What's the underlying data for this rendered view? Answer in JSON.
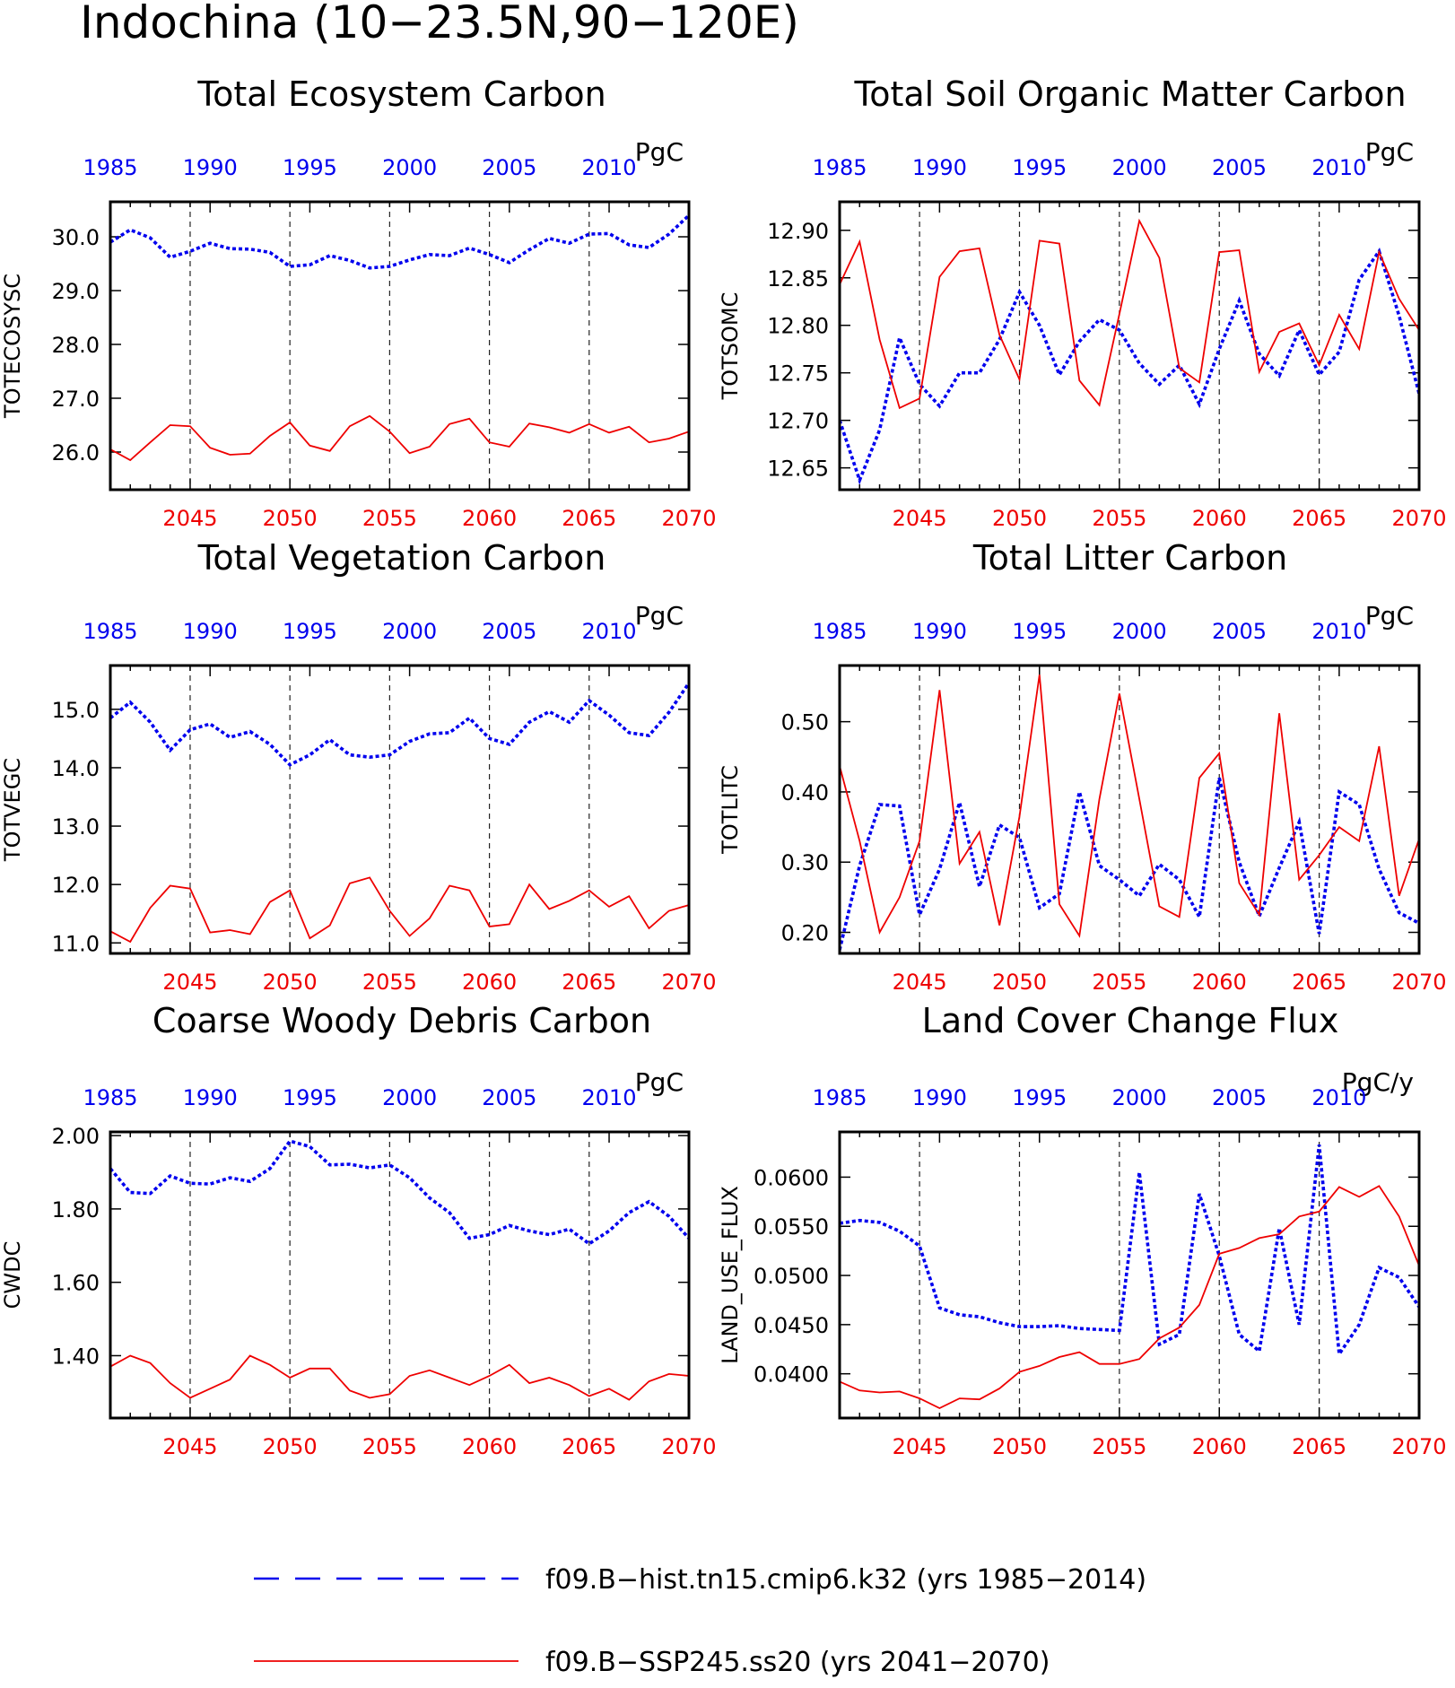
{
  "figure": {
    "title": "Indochina (10−23.5N,90−120E)",
    "colors": {
      "hist": "#0000ee",
      "ssp": "#ee0000",
      "axis": "#000000"
    }
  },
  "legend": {
    "entries": [
      {
        "name": "f09.B−hist.tn15.cmip6.k32 (yrs 1985−2014)",
        "color": "#0000ee",
        "style": "dashed"
      },
      {
        "name": "f09.B−SSP245.ss20 (yrs 2041−2070)",
        "color": "#ee0000",
        "style": "solid"
      }
    ]
  },
  "chart_data": [
    {
      "type": "line",
      "title": "Total Ecosystem Carbon",
      "ylabel": "TOTECOSYSC",
      "units": "PgC",
      "ylim": [
        25.3,
        30.65
      ],
      "yticks": [
        26.0,
        27.0,
        28.0,
        29.0,
        30.0
      ],
      "ytick_labels": [
        "26.0",
        "27.0",
        "28.0",
        "29.0",
        "30.0"
      ],
      "x_top": [
        1985,
        1986,
        1987,
        1988,
        1989,
        1990,
        1991,
        1992,
        1993,
        1994,
        1995,
        1996,
        1997,
        1998,
        1999,
        2000,
        2001,
        2002,
        2003,
        2004,
        2005,
        2006,
        2007,
        2008,
        2009,
        2010,
        2011,
        2012,
        2013,
        2014
      ],
      "x_bottom": [
        2041,
        2042,
        2043,
        2044,
        2045,
        2046,
        2047,
        2048,
        2049,
        2050,
        2051,
        2052,
        2053,
        2054,
        2055,
        2056,
        2057,
        2058,
        2059,
        2060,
        2061,
        2062,
        2063,
        2064,
        2065,
        2066,
        2067,
        2068,
        2069,
        2070
      ],
      "top_ticks": [
        1985,
        1990,
        1995,
        2000,
        2005,
        2010
      ],
      "bottom_ticks": [
        2045,
        2050,
        2055,
        2060,
        2065,
        2070
      ],
      "series": [
        {
          "name": "hist",
          "values": [
            29.9,
            30.13,
            29.98,
            29.62,
            29.73,
            29.88,
            29.78,
            29.77,
            29.71,
            29.45,
            29.48,
            29.65,
            29.56,
            29.42,
            29.45,
            29.57,
            29.67,
            29.65,
            29.79,
            29.67,
            29.52,
            29.76,
            29.97,
            29.88,
            30.05,
            30.06,
            29.85,
            29.8,
            30.05,
            30.4
          ]
        },
        {
          "name": "ssp",
          "values": [
            26.05,
            25.85,
            26.18,
            26.5,
            26.48,
            26.08,
            25.95,
            25.97,
            26.3,
            26.55,
            26.12,
            26.02,
            26.48,
            26.67,
            26.38,
            25.98,
            26.1,
            26.52,
            26.62,
            26.18,
            26.1,
            26.53,
            26.46,
            26.36,
            26.52,
            26.36,
            26.47,
            26.18,
            26.25,
            26.38
          ]
        }
      ]
    },
    {
      "type": "line",
      "title": "Total Soil Organic Matter Carbon",
      "ylabel": "TOTSOMC",
      "units": "PgC",
      "ylim": [
        12.627,
        12.93
      ],
      "yticks": [
        12.65,
        12.7,
        12.75,
        12.8,
        12.85,
        12.9
      ],
      "ytick_labels": [
        "12.65",
        "12.70",
        "12.75",
        "12.80",
        "12.85",
        "12.90"
      ],
      "x_top": [
        1985,
        1986,
        1987,
        1988,
        1989,
        1990,
        1991,
        1992,
        1993,
        1994,
        1995,
        1996,
        1997,
        1998,
        1999,
        2000,
        2001,
        2002,
        2003,
        2004,
        2005,
        2006,
        2007,
        2008,
        2009,
        2010,
        2011,
        2012,
        2013,
        2014
      ],
      "x_bottom": [
        2041,
        2042,
        2043,
        2044,
        2045,
        2046,
        2047,
        2048,
        2049,
        2050,
        2051,
        2052,
        2053,
        2054,
        2055,
        2056,
        2057,
        2058,
        2059,
        2060,
        2061,
        2062,
        2063,
        2064,
        2065,
        2066,
        2067,
        2068,
        2069,
        2070
      ],
      "top_ticks": [
        1985,
        1990,
        1995,
        2000,
        2005,
        2010
      ],
      "bottom_ticks": [
        2045,
        2050,
        2055,
        2060,
        2065,
        2070
      ],
      "series": [
        {
          "name": "hist",
          "values": [
            12.7,
            12.637,
            12.69,
            12.787,
            12.738,
            12.715,
            12.75,
            12.75,
            12.785,
            12.835,
            12.8,
            12.748,
            12.783,
            12.806,
            12.795,
            12.76,
            12.738,
            12.758,
            12.717,
            12.775,
            12.826,
            12.77,
            12.747,
            12.795,
            12.748,
            12.772,
            12.848,
            12.878,
            12.81,
            12.728
          ]
        },
        {
          "name": "ssp",
          "values": [
            12.843,
            12.888,
            12.785,
            12.713,
            12.723,
            12.851,
            12.878,
            12.881,
            12.79,
            12.743,
            12.889,
            12.886,
            12.742,
            12.716,
            12.812,
            12.91,
            12.871,
            12.755,
            12.74,
            12.877,
            12.879,
            12.751,
            12.793,
            12.802,
            12.758,
            12.811,
            12.775,
            12.877,
            12.828,
            12.795
          ]
        }
      ]
    },
    {
      "type": "line",
      "title": "Total Vegetation Carbon",
      "ylabel": "TOTVEGC",
      "units": "PgC",
      "ylim": [
        10.82,
        15.75
      ],
      "yticks": [
        11.0,
        12.0,
        13.0,
        14.0,
        15.0
      ],
      "ytick_labels": [
        "11.0",
        "12.0",
        "13.0",
        "14.0",
        "15.0"
      ],
      "x_top": [
        1985,
        1986,
        1987,
        1988,
        1989,
        1990,
        1991,
        1992,
        1993,
        1994,
        1995,
        1996,
        1997,
        1998,
        1999,
        2000,
        2001,
        2002,
        2003,
        2004,
        2005,
        2006,
        2007,
        2008,
        2009,
        2010,
        2011,
        2012,
        2013,
        2014
      ],
      "x_bottom": [
        2041,
        2042,
        2043,
        2044,
        2045,
        2046,
        2047,
        2048,
        2049,
        2050,
        2051,
        2052,
        2053,
        2054,
        2055,
        2056,
        2057,
        2058,
        2059,
        2060,
        2061,
        2062,
        2063,
        2064,
        2065,
        2066,
        2067,
        2068,
        2069,
        2070
      ],
      "top_ticks": [
        1985,
        1990,
        1995,
        2000,
        2005,
        2010
      ],
      "bottom_ticks": [
        2045,
        2050,
        2055,
        2060,
        2065,
        2070
      ],
      "series": [
        {
          "name": "hist",
          "values": [
            14.85,
            15.12,
            14.78,
            14.3,
            14.65,
            14.75,
            14.52,
            14.62,
            14.4,
            14.05,
            14.22,
            14.48,
            14.22,
            14.18,
            14.22,
            14.45,
            14.58,
            14.6,
            14.85,
            14.5,
            14.4,
            14.78,
            14.96,
            14.78,
            15.15,
            14.9,
            14.6,
            14.55,
            14.95,
            15.45
          ]
        },
        {
          "name": "ssp",
          "values": [
            11.2,
            11.02,
            11.6,
            11.98,
            11.93,
            11.18,
            11.22,
            11.15,
            11.7,
            11.9,
            11.08,
            11.3,
            12.02,
            12.12,
            11.55,
            11.12,
            11.42,
            11.98,
            11.9,
            11.28,
            11.32,
            12.0,
            11.58,
            11.72,
            11.9,
            11.62,
            11.8,
            11.25,
            11.55,
            11.65
          ]
        }
      ]
    },
    {
      "type": "line",
      "title": "Total Litter Carbon",
      "ylabel": "TOTLITC",
      "units": "PgC",
      "ylim": [
        0.17,
        0.58
      ],
      "yticks": [
        0.2,
        0.3,
        0.4,
        0.5
      ],
      "ytick_labels": [
        "0.20",
        "0.30",
        "0.40",
        "0.50"
      ],
      "x_top": [
        1985,
        1986,
        1987,
        1988,
        1989,
        1990,
        1991,
        1992,
        1993,
        1994,
        1995,
        1996,
        1997,
        1998,
        1999,
        2000,
        2001,
        2002,
        2003,
        2004,
        2005,
        2006,
        2007,
        2008,
        2009,
        2010,
        2011,
        2012,
        2013,
        2014
      ],
      "x_bottom": [
        2041,
        2042,
        2043,
        2044,
        2045,
        2046,
        2047,
        2048,
        2049,
        2050,
        2051,
        2052,
        2053,
        2054,
        2055,
        2056,
        2057,
        2058,
        2059,
        2060,
        2061,
        2062,
        2063,
        2064,
        2065,
        2066,
        2067,
        2068,
        2069,
        2070
      ],
      "top_ticks": [
        1985,
        1990,
        1995,
        2000,
        2005,
        2010
      ],
      "bottom_ticks": [
        2045,
        2050,
        2055,
        2060,
        2065,
        2070
      ],
      "series": [
        {
          "name": "hist",
          "values": [
            0.175,
            0.295,
            0.382,
            0.38,
            0.225,
            0.29,
            0.385,
            0.265,
            0.353,
            0.335,
            0.235,
            0.255,
            0.4,
            0.295,
            0.275,
            0.252,
            0.297,
            0.275,
            0.222,
            0.42,
            0.3,
            0.223,
            0.292,
            0.357,
            0.198,
            0.4,
            0.382,
            0.29,
            0.228,
            0.213
          ]
        },
        {
          "name": "ssp",
          "values": [
            0.437,
            0.33,
            0.2,
            0.25,
            0.33,
            0.545,
            0.298,
            0.343,
            0.21,
            0.365,
            0.567,
            0.24,
            0.195,
            0.39,
            0.54,
            0.39,
            0.237,
            0.222,
            0.42,
            0.455,
            0.27,
            0.225,
            0.512,
            0.275,
            0.31,
            0.35,
            0.33,
            0.465,
            0.252,
            0.333
          ]
        }
      ]
    },
    {
      "type": "line",
      "title": "Coarse Woody Debris Carbon",
      "ylabel": "CWDC",
      "units": "PgC",
      "ylim": [
        1.23,
        2.01
      ],
      "yticks": [
        1.4,
        1.6,
        1.8,
        2.0
      ],
      "ytick_labels": [
        "1.40",
        "1.60",
        "1.80",
        "2.00"
      ],
      "x_top": [
        1985,
        1986,
        1987,
        1988,
        1989,
        1990,
        1991,
        1992,
        1993,
        1994,
        1995,
        1996,
        1997,
        1998,
        1999,
        2000,
        2001,
        2002,
        2003,
        2004,
        2005,
        2006,
        2007,
        2008,
        2009,
        2010,
        2011,
        2012,
        2013,
        2014
      ],
      "x_bottom": [
        2041,
        2042,
        2043,
        2044,
        2045,
        2046,
        2047,
        2048,
        2049,
        2050,
        2051,
        2052,
        2053,
        2054,
        2055,
        2056,
        2057,
        2058,
        2059,
        2060,
        2061,
        2062,
        2063,
        2064,
        2065,
        2066,
        2067,
        2068,
        2069,
        2070
      ],
      "top_ticks": [
        1985,
        1990,
        1995,
        2000,
        2005,
        2010
      ],
      "bottom_ticks": [
        2045,
        2050,
        2055,
        2060,
        2065,
        2070
      ],
      "series": [
        {
          "name": "hist",
          "values": [
            1.91,
            1.845,
            1.842,
            1.89,
            1.87,
            1.868,
            1.885,
            1.875,
            1.91,
            1.985,
            1.97,
            1.92,
            1.922,
            1.912,
            1.92,
            1.885,
            1.83,
            1.79,
            1.72,
            1.73,
            1.755,
            1.74,
            1.73,
            1.745,
            1.705,
            1.74,
            1.79,
            1.82,
            1.78,
            1.72
          ]
        },
        {
          "name": "ssp",
          "values": [
            1.37,
            1.4,
            1.38,
            1.325,
            1.285,
            1.31,
            1.335,
            1.4,
            1.375,
            1.34,
            1.365,
            1.365,
            1.305,
            1.285,
            1.295,
            1.345,
            1.36,
            1.34,
            1.32,
            1.345,
            1.375,
            1.325,
            1.34,
            1.32,
            1.29,
            1.31,
            1.28,
            1.33,
            1.35,
            1.345
          ]
        }
      ]
    },
    {
      "type": "line",
      "title": "Land Cover Change Flux",
      "ylabel": "LAND_USE_FLUX",
      "units": "PgC/y",
      "ylim": [
        0.0355,
        0.0646
      ],
      "yticks": [
        0.04,
        0.045,
        0.05,
        0.055,
        0.06
      ],
      "ytick_labels": [
        "0.0400",
        "0.0450",
        "0.0500",
        "0.0550",
        "0.0600"
      ],
      "x_top": [
        1985,
        1986,
        1987,
        1988,
        1989,
        1990,
        1991,
        1992,
        1993,
        1994,
        1995,
        1996,
        1997,
        1998,
        1999,
        2000,
        2001,
        2002,
        2003,
        2004,
        2005,
        2006,
        2007,
        2008,
        2009,
        2010,
        2011,
        2012,
        2013,
        2014
      ],
      "x_bottom": [
        2041,
        2042,
        2043,
        2044,
        2045,
        2046,
        2047,
        2048,
        2049,
        2050,
        2051,
        2052,
        2053,
        2054,
        2055,
        2056,
        2057,
        2058,
        2059,
        2060,
        2061,
        2062,
        2063,
        2064,
        2065,
        2066,
        2067,
        2068,
        2069,
        2070
      ],
      "top_ticks": [
        1985,
        1990,
        1995,
        2000,
        2005,
        2010
      ],
      "bottom_ticks": [
        2045,
        2050,
        2055,
        2060,
        2065,
        2070
      ],
      "series": [
        {
          "name": "hist",
          "values": [
            0.0553,
            0.0556,
            0.0554,
            0.0545,
            0.053,
            0.0467,
            0.046,
            0.0458,
            0.0452,
            0.0448,
            0.0448,
            0.0449,
            0.0446,
            0.0445,
            0.0444,
            0.0605,
            0.043,
            0.044,
            0.0583,
            0.052,
            0.044,
            0.0423,
            0.0548,
            0.045,
            0.0633,
            0.042,
            0.045,
            0.0508,
            0.0498,
            0.0468
          ]
        },
        {
          "name": "ssp",
          "values": [
            0.0392,
            0.0383,
            0.0381,
            0.0382,
            0.0375,
            0.0365,
            0.0375,
            0.0374,
            0.0385,
            0.0402,
            0.0408,
            0.0417,
            0.0422,
            0.041,
            0.041,
            0.0415,
            0.0436,
            0.0447,
            0.047,
            0.0522,
            0.0528,
            0.0538,
            0.0542,
            0.056,
            0.0565,
            0.059,
            0.058,
            0.0591,
            0.056,
            0.051
          ]
        }
      ]
    }
  ]
}
